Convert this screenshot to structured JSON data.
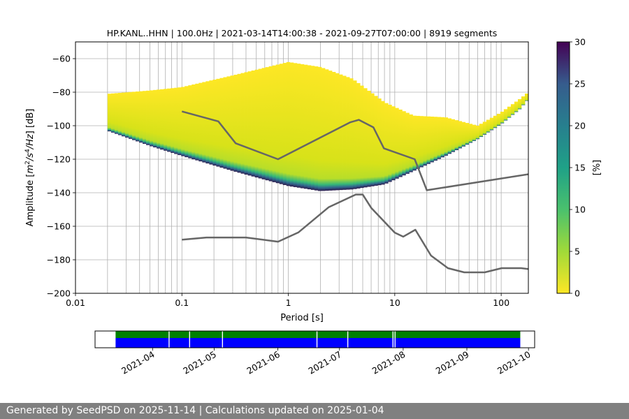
{
  "title": "HP.KANL..HHN | 100.0Hz | 2021-03-14T14:00:38 - 2021-09-27T07:00:00 | 8919 segments",
  "footer_text": "Generated by SeedPSD on 2025-11-14 | Calculations updated on 2025-01-04",
  "chart_data": [
    {
      "type": "heatmap",
      "title": "HP.KANL..HHN | 100.0Hz | 2021-03-14T14:00:38 - 2021-09-27T07:00:00 | 8919 segments",
      "xlabel": "Period [s]",
      "ylabel_parts": [
        "Amplitude [",
        "m",
        "2",
        "/",
        "s",
        "4",
        "/Hz",
        "] [dB]"
      ],
      "x_scale": "log",
      "xlim": [
        0.01,
        180
      ],
      "ylim": [
        -200,
        -50
      ],
      "x_ticks": [
        0.01,
        0.1,
        1,
        10,
        100
      ],
      "x_tick_labels": [
        "0.01",
        "0.1",
        "1",
        "10",
        "100"
      ],
      "y_ticks": [
        -200,
        -180,
        -160,
        -140,
        -120,
        -100,
        -80,
        -60
      ],
      "y_tick_labels": [
        "−200",
        "−180",
        "−160",
        "−140",
        "−120",
        "−100",
        "−80",
        "−60"
      ],
      "grid": true,
      "colormap": "viridis_r",
      "colorbar": {
        "label": "[%]",
        "range": [
          0,
          30
        ],
        "ticks": [
          0,
          5,
          10,
          15,
          20,
          25,
          30
        ]
      },
      "band_profile": {
        "period": [
          0.02,
          0.05,
          0.1,
          0.3,
          1,
          2,
          4,
          8,
          15,
          30,
          60,
          100,
          150,
          180
        ],
        "lower_db": [
          -103,
          -112,
          -118,
          -127,
          -136,
          -139,
          -138,
          -135,
          -127,
          -118,
          -108,
          -99,
          -90,
          -84
        ],
        "upper_db": [
          -81,
          -79,
          -77,
          -70,
          -62,
          -65,
          -72,
          -86,
          -94,
          -95,
          -100,
          -92,
          -84,
          -80
        ],
        "peak_db": [
          -100,
          -108,
          -112,
          -118,
          -124,
          -127,
          -124,
          -120,
          -120,
          -114,
          -106,
          -98,
          -90,
          -84
        ]
      },
      "new_high_noise_model": {
        "period": [
          0.1,
          0.22,
          0.32,
          0.8,
          3.8,
          4.6,
          6.3,
          7.9,
          15.4,
          20,
          354.8
        ],
        "db": [
          -91.5,
          -97.4,
          -110.5,
          -120,
          -98,
          -96.5,
          -101,
          -113.5,
          -120,
          -138.5,
          -126
        ]
      },
      "new_low_noise_model": {
        "period": [
          0.1,
          0.17,
          0.4,
          0.8,
          1.24,
          2.4,
          4.3,
          5,
          6,
          10,
          12,
          15.6,
          21.9,
          31.6,
          45,
          70,
          101,
          154,
          328
        ],
        "db": [
          -168,
          -166.7,
          -166.7,
          -169.2,
          -163.7,
          -148.6,
          -141.1,
          -141.1,
          -149,
          -163.8,
          -166.2,
          -162.1,
          -177.5,
          -185,
          -187.5,
          -187.5,
          -185,
          -185,
          -187.5
        ]
      },
      "series_color": "#666666",
      "band_colors": {
        "yellow": "#fde725",
        "dark": "#30123b"
      }
    },
    {
      "type": "timeline",
      "x_tick_labels": [
        "2021-04",
        "2021-05",
        "2021-06",
        "2021-07",
        "2021-08",
        "2021-09",
        "2021-10"
      ],
      "x_ticks": [
        "2021-04-01",
        "2021-05-01",
        "2021-06-01",
        "2021-07-01",
        "2021-08-01",
        "2021-09-01",
        "2021-10-01"
      ],
      "range": [
        "2021-03-04",
        "2021-10-04"
      ],
      "data_start": "2021-03-14",
      "data_end": "2021-09-27",
      "gaps": [
        "2021-04-09",
        "2021-04-19",
        "2021-05-05",
        "2021-06-20",
        "2021-07-05",
        "2021-07-27",
        "2021-07-28"
      ],
      "colors": {
        "available": "#008000",
        "used": "#0000ff",
        "gap": "#ffffff"
      }
    }
  ]
}
